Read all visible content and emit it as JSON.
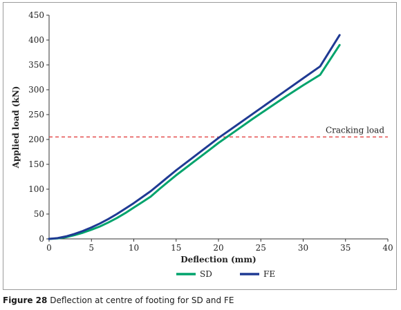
{
  "caption": {
    "label": "Figure 28",
    "text": "Deflection at centre of footing for SD and FE"
  },
  "chart_data": {
    "type": "line",
    "xlabel": "Deflection (mm)",
    "ylabel": "Applied load (kN)",
    "xlim": [
      0,
      40
    ],
    "ylim": [
      0,
      450
    ],
    "xticks": [
      0,
      5,
      10,
      15,
      20,
      25,
      30,
      35,
      40
    ],
    "yticks": [
      0,
      50,
      100,
      150,
      200,
      250,
      300,
      350,
      400,
      450
    ],
    "grid": false,
    "legend_position": "bottom-center",
    "series": [
      {
        "name": "SD",
        "color": "#00a36c",
        "x": [
          0,
          1,
          2,
          3,
          4,
          5,
          6,
          7,
          8,
          9,
          10,
          11,
          12,
          13,
          14,
          15,
          16,
          17,
          18,
          19,
          20,
          22,
          24,
          26,
          28,
          30,
          32,
          34.3
        ],
        "y": [
          0,
          1,
          3.5,
          7.5,
          12.5,
          18.5,
          25,
          33,
          42,
          52,
          63,
          74,
          85,
          100,
          114,
          128,
          141,
          154,
          167,
          180,
          193,
          217,
          241,
          264,
          287,
          309,
          330,
          390
        ]
      },
      {
        "name": "FE",
        "color": "#1f3a93",
        "x": [
          0,
          1,
          2,
          3,
          4,
          5,
          6,
          7,
          8,
          9,
          10,
          11,
          12,
          13,
          14,
          15,
          16,
          17,
          18,
          19,
          20,
          22,
          24,
          26,
          28,
          30,
          32,
          34.3
        ],
        "y": [
          0,
          1.5,
          5,
          10,
          16,
          23,
          31,
          40,
          50,
          61,
          72,
          84,
          96,
          110,
          124,
          138,
          151,
          164,
          177,
          190,
          203,
          227,
          251,
          275,
          299,
          323,
          347,
          410
        ]
      }
    ],
    "reference_lines": [
      {
        "axis": "y",
        "value": 205,
        "label": "Cracking load",
        "color": "#e03131",
        "style": "dashed"
      }
    ]
  }
}
